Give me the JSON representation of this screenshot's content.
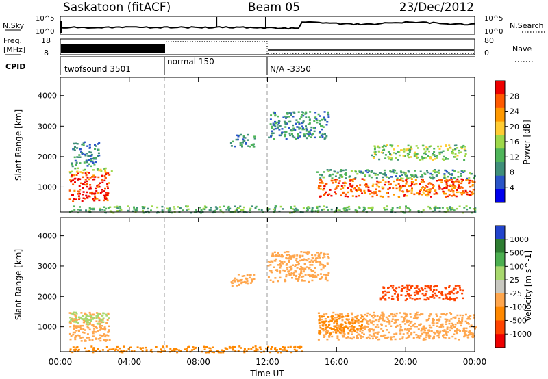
{
  "header": {
    "station": "Saskatoon (fitACF)",
    "beam": "Beam 05",
    "date": "23/Dec/2012"
  },
  "noise_panel": {
    "left_label": "N.Sky",
    "right_label": "N.Search",
    "left_ticks": [
      "10^5",
      "10^0"
    ],
    "right_ticks": [
      "10^5",
      "10^0"
    ]
  },
  "freq_panel": {
    "left_label_1": "Freq.",
    "left_label_2": "[MHz]",
    "left_ticks": [
      "18",
      "8"
    ],
    "right_label": "Nave",
    "right_ticks": [
      "80",
      "0"
    ]
  },
  "cpid": {
    "label": "CPID",
    "segments": [
      {
        "label": "twofsound 3501",
        "start_h": 0,
        "end_h": 6
      },
      {
        "label": "normal 150",
        "start_h": 6,
        "end_h": 12
      },
      {
        "label": "N/A -3350",
        "start_h": 12,
        "end_h": 24
      }
    ]
  },
  "colors": {
    "power_scale": [
      "#0000ee",
      "#2a55c8",
      "#3f8f7a",
      "#4fb55a",
      "#9ed84a",
      "#ffcc33",
      "#ff9900",
      "#ff5a00",
      "#ee0000"
    ],
    "velocity_scale": [
      "#2244cc",
      "#2e7d32",
      "#4caf50",
      "#a8d86e",
      "#c8c8c0",
      "#ffa64d",
      "#ff8800",
      "#ff4400",
      "#ee0000"
    ]
  },
  "chart_data": [
    {
      "type": "heatmap",
      "title": "Power",
      "xlabel": "",
      "ylabel": "Slant Range [km]",
      "xlim": [
        0,
        24
      ],
      "ylim": [
        180,
        4600
      ],
      "yticks": [
        "1000",
        "2000",
        "3000",
        "4000"
      ],
      "colorbar": {
        "label": "Power [dB]",
        "ticks": [
          "4",
          "8",
          "12",
          "16",
          "20",
          "24",
          "28"
        ],
        "range": [
          0,
          32
        ]
      },
      "regions": [
        {
          "t0": 0.5,
          "t1": 2.8,
          "r0": 550,
          "r1": 1500,
          "v": 29
        },
        {
          "t0": 0.5,
          "t1": 3.0,
          "r0": 1500,
          "r1": 1650,
          "v": 17
        },
        {
          "t0": 0.6,
          "t1": 2.2,
          "r0": 1700,
          "r1": 2500,
          "v": 9
        },
        {
          "t0": 14.9,
          "t1": 24.0,
          "r0": 700,
          "r1": 1300,
          "v": 26
        },
        {
          "t0": 14.8,
          "t1": 24.0,
          "r0": 1300,
          "r1": 1600,
          "v": 11
        },
        {
          "t0": 12.0,
          "t1": 15.5,
          "r0": 2600,
          "r1": 3500,
          "v": 9
        },
        {
          "t0": 18.0,
          "t1": 23.5,
          "r0": 1900,
          "r1": 2400,
          "v": 15
        },
        {
          "t0": 9.8,
          "t1": 11.3,
          "r0": 2350,
          "r1": 2750,
          "v": 9
        },
        {
          "t0": 0.5,
          "t1": 24.0,
          "r0": 180,
          "r1": 400,
          "v": 12
        }
      ]
    },
    {
      "type": "heatmap",
      "title": "Velocity",
      "xlabel": "Time UT",
      "ylabel": "Slant Range [km]",
      "xlim": [
        0,
        24
      ],
      "ylim": [
        180,
        4600
      ],
      "xticks": [
        "00:00",
        "04:00",
        "08:00",
        "12:00",
        "16:00",
        "20:00",
        "00:00"
      ],
      "yticks": [
        "1000",
        "2000",
        "3000",
        "4000"
      ],
      "colorbar": {
        "label": "Velocity [m s^-1]",
        "ticks": [
          "1000",
          "500",
          "100",
          "25",
          "-25",
          "-100",
          "-500",
          "-1000"
        ]
      },
      "regions": [
        {
          "t0": 0.5,
          "t1": 2.8,
          "r0": 550,
          "r1": 1500,
          "v": "-25"
        },
        {
          "t0": 0.5,
          "t1": 2.8,
          "r0": 1100,
          "r1": 1500,
          "v": "25"
        },
        {
          "t0": 14.9,
          "t1": 24.0,
          "r0": 600,
          "r1": 1500,
          "v": "-25"
        },
        {
          "t0": 14.9,
          "t1": 17.5,
          "r0": 800,
          "r1": 1400,
          "v": "-100"
        },
        {
          "t0": 12.0,
          "t1": 15.5,
          "r0": 2500,
          "r1": 3500,
          "v": "-25"
        },
        {
          "t0": 18.5,
          "t1": 23.3,
          "r0": 1900,
          "r1": 2400,
          "v": "-500"
        },
        {
          "t0": 9.8,
          "t1": 11.3,
          "r0": 2350,
          "r1": 2750,
          "v": "-25"
        },
        {
          "t0": 0.5,
          "t1": 14.0,
          "r0": 180,
          "r1": 380,
          "v": "-100"
        }
      ]
    }
  ]
}
